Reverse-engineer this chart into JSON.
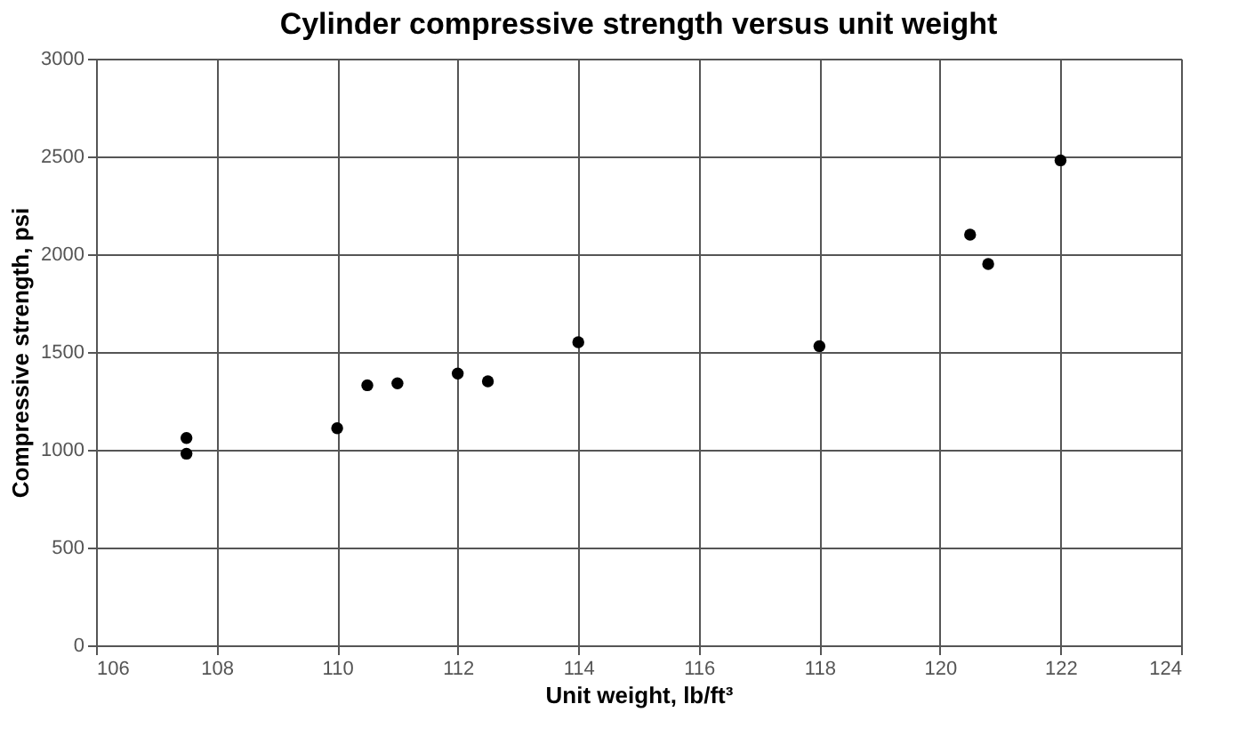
{
  "chart_data": {
    "type": "scatter",
    "title": "Cylinder compressive strength versus unit weight",
    "xlabel": "Unit weight, lb/ft³",
    "ylabel": "Compressive strength, psi",
    "x": [
      107.5,
      107.5,
      110,
      110.5,
      111,
      112,
      112.5,
      114,
      118,
      120.5,
      120.8,
      122
    ],
    "series": [
      {
        "color": "#000000",
        "values": [
          1060,
          980,
          1110,
          1330,
          1340,
          1390,
          1350,
          1550,
          1530,
          2100,
          1950,
          2480
        ]
      }
    ],
    "xlim": [
      106,
      124
    ],
    "xticks": [
      106,
      108,
      110,
      112,
      114,
      116,
      118,
      120,
      122,
      124
    ],
    "ylim": [
      0,
      3000
    ],
    "yticks": [
      0,
      500,
      1000,
      1500,
      2000,
      2500,
      3000
    ],
    "grid": true,
    "marker": "circle"
  }
}
